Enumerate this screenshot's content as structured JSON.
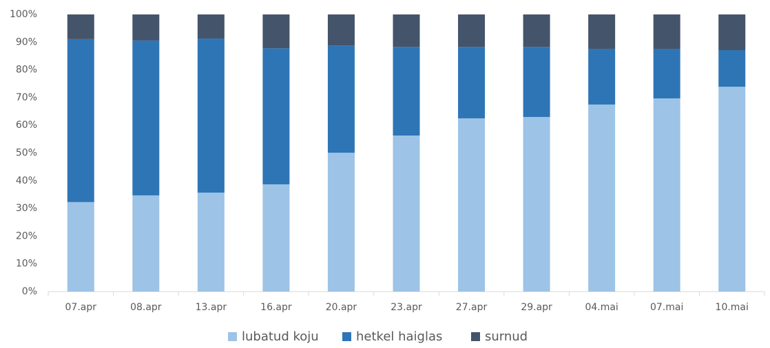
{
  "chart_data": {
    "type": "stacked_bar",
    "categories": [
      "07.apr",
      "08.apr",
      "13.apr",
      "16.apr",
      "20.apr",
      "23.apr",
      "27.apr",
      "29.apr",
      "04.mai",
      "07.mai",
      "10.mai"
    ],
    "series": [
      {
        "name": "lubatud koju",
        "color": "#9dc3e6",
        "values": [
          32.3,
          34.7,
          35.7,
          38.7,
          50.1,
          56.3,
          62.5,
          63.0,
          67.5,
          69.7,
          73.9
        ]
      },
      {
        "name": "hetkel haiglas",
        "color": "#2e75b6",
        "values": [
          58.8,
          55.9,
          55.6,
          49.1,
          38.7,
          32.0,
          25.8,
          25.3,
          20.1,
          17.9,
          13.2
        ]
      },
      {
        "name": "surnud",
        "color": "#44546a",
        "values": [
          8.9,
          9.4,
          8.7,
          12.2,
          11.2,
          11.7,
          11.7,
          11.7,
          12.4,
          12.4,
          12.9
        ]
      }
    ],
    "ylim": [
      0,
      100
    ],
    "yticks": [
      {
        "value": 0,
        "label": "0%"
      },
      {
        "value": 10,
        "label": "10%"
      },
      {
        "value": 20,
        "label": "20%"
      },
      {
        "value": 30,
        "label": "30%"
      },
      {
        "value": 40,
        "label": "40%"
      },
      {
        "value": 50,
        "label": "50%"
      },
      {
        "value": 60,
        "label": "60%"
      },
      {
        "value": 70,
        "label": "70%"
      },
      {
        "value": 80,
        "label": "80%"
      },
      {
        "value": 90,
        "label": "90%"
      },
      {
        "value": 100,
        "label": "100%"
      }
    ],
    "legend": "bottom"
  }
}
